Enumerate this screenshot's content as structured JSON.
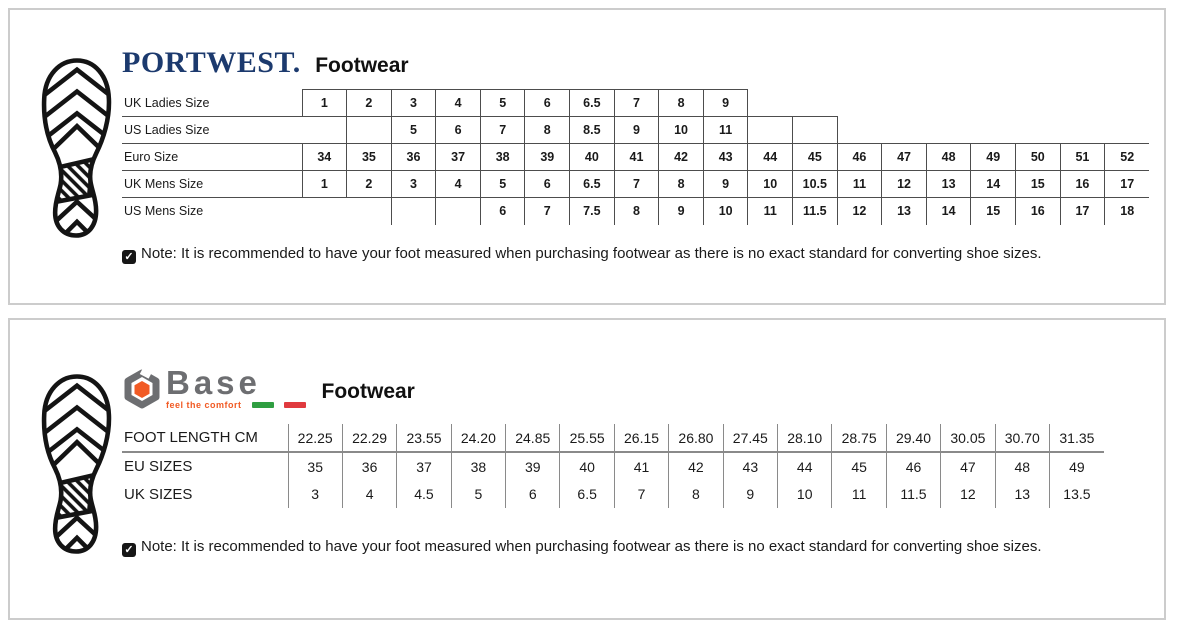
{
  "page": {
    "background": "#ffffff",
    "panel_border": "#cccccc",
    "grid_line_dark": "#4d4d4d",
    "grid_line_gray": "#8a8a8a"
  },
  "panels": [
    {
      "id": "portwest",
      "logo": {
        "brand": "PORTWEST.",
        "brand_color": "#1c3a6e"
      },
      "title": "Footwear",
      "table": {
        "cols": 19,
        "rows": [
          {
            "label": "UK Ladies Size",
            "cells": [
              "1",
              "2",
              "3",
              "4",
              "5",
              "6",
              "6.5",
              "7",
              "8",
              "9"
            ]
          },
          {
            "label": "US Ladies Size",
            "cells": [
              "",
              "",
              "5",
              "6",
              "7",
              "8",
              "8.5",
              "9",
              "10",
              "11",
              "",
              ""
            ]
          },
          {
            "label": "Euro Size",
            "cells": [
              "34",
              "35",
              "36",
              "37",
              "38",
              "39",
              "40",
              "41",
              "42",
              "43",
              "44",
              "45",
              "46",
              "47",
              "48",
              "49",
              "50",
              "51",
              "52"
            ]
          },
          {
            "label": "UK Mens Size",
            "cells": [
              "1",
              "2",
              "3",
              "4",
              "5",
              "6",
              "6.5",
              "7",
              "8",
              "9",
              "10",
              "10.5",
              "11",
              "12",
              "13",
              "14",
              "15",
              "16",
              "17"
            ]
          },
          {
            "label": "US Mens Size",
            "cells": [
              "",
              "",
              "",
              "",
              "6",
              "7",
              "7.5",
              "8",
              "9",
              "10",
              "11",
              "11.5",
              "12",
              "13",
              "14",
              "15",
              "16",
              "17",
              "18"
            ]
          }
        ]
      },
      "note": "Note: It is recommended to have your foot measured when purchasing footwear as there is no exact standard for converting shoe sizes."
    },
    {
      "id": "base",
      "logo": {
        "brand": "Base",
        "tagline": "feel the comfort",
        "brand_color": "#6d6e71",
        "accent_orange": "#f15a24",
        "flag_green": "#2f9e41",
        "flag_red": "#e03a3e"
      },
      "title": "Footwear",
      "table": {
        "cols": 15,
        "rows": [
          {
            "label": "FOOT LENGTH CM",
            "cells": [
              "22.25",
              "22.29",
              "23.55",
              "24.20",
              "24.85",
              "25.55",
              "26.15",
              "26.80",
              "27.45",
              "28.10",
              "28.75",
              "29.40",
              "30.05",
              "30.70",
              "31.35"
            ]
          },
          {
            "label": "EU SIZES",
            "cells": [
              "35",
              "36",
              "37",
              "38",
              "39",
              "40",
              "41",
              "42",
              "43",
              "44",
              "45",
              "46",
              "47",
              "48",
              "49"
            ]
          },
          {
            "label": "UK SIZES",
            "cells": [
              "3",
              "4",
              "4.5",
              "5",
              "6",
              "6.5",
              "7",
              "8",
              "9",
              "10",
              "11",
              "11.5",
              "12",
              "13",
              "13.5"
            ]
          }
        ]
      },
      "note": "Note: It is recommended to have your foot measured when purchasing footwear as there is no exact standard for converting shoe sizes."
    }
  ],
  "icons": {
    "sole": "boot-print-icon",
    "note": "checked-box-icon",
    "base_mark": "hex-nut-icon"
  }
}
